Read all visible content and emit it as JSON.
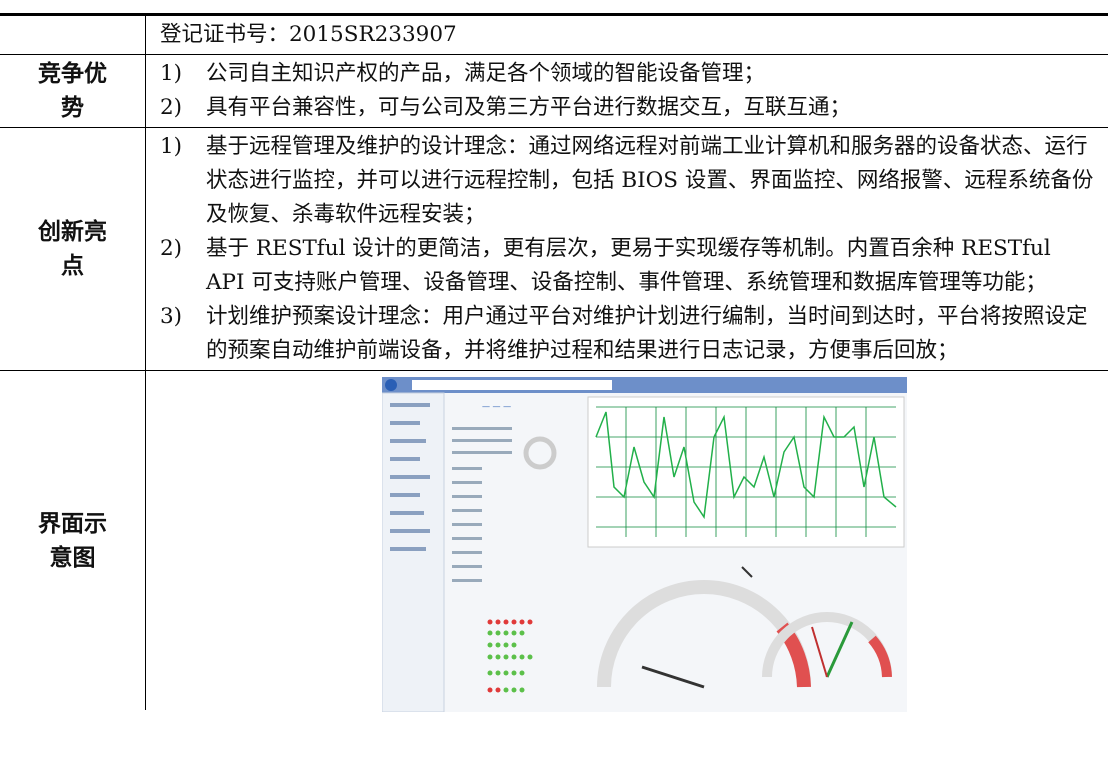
{
  "table": {
    "rows": [
      {
        "label": "",
        "items": [
          {
            "number": "",
            "text": "登记证书号：2015SR233907"
          }
        ]
      },
      {
        "label": "竞争优势",
        "items": [
          {
            "number": "1)",
            "text": "公司自主知识产权的产品，满足各个领域的智能设备管理；"
          },
          {
            "number": "2)",
            "text": "具有平台兼容性，可与公司及第三方平台进行数据交互，互联互通；"
          }
        ]
      },
      {
        "label": "创新亮点",
        "items": [
          {
            "number": "1)",
            "text": "基于远程管理及维护的设计理念：通过网络远程对前端工业计算机和服务器的设备状态、运行状态进行监控，并可以进行远程控制，包括 BIOS 设置、界面监控、网络报警、远程系统备份及恢复、杀毒软件远程安装；"
          },
          {
            "number": "2)",
            "text": "基于 RESTful 设计的更简洁，更有层次，更易于实现缓存等机制。内置百余种 RESTful API 可支持账户管理、设备管理、设备控制、事件管理、系统管理和数据库管理等功能；"
          },
          {
            "number": "3)",
            "text": "计划维护预案设计理念：用户通过平台对维护计划进行编制，当时间到达时，平台将按照设定的预案自动维护前端设备，并将维护过程和结果进行日志记录，方便事后回放；"
          }
        ]
      },
      {
        "label": "界面示意图",
        "items": []
      }
    ]
  }
}
